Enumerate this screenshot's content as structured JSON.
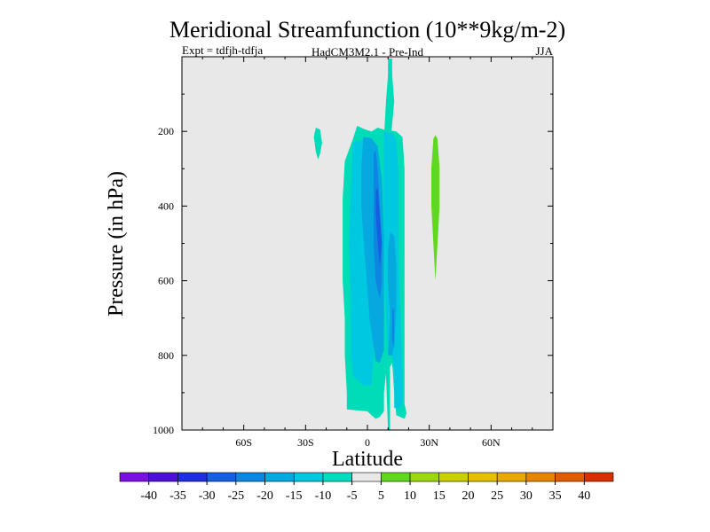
{
  "chart_data": {
    "type": "heatmap",
    "title": "Meridional Streamfunction (10**9kg/m-2)",
    "subtitle_left": "Expt = tdfjh-tdfja",
    "subtitle_center": "HadCM3M2.1 - Pre-Ind",
    "subtitle_right": "JJA",
    "xlabel": "Latitude",
    "ylabel": "Pressure (in hPa)",
    "xlim": [
      -90,
      90
    ],
    "ylim": [
      0,
      1000
    ],
    "x_ticks": [
      {
        "value": -60,
        "label": "60S"
      },
      {
        "value": -30,
        "label": "30S"
      },
      {
        "value": 0,
        "label": "0"
      },
      {
        "value": 30,
        "label": "30N"
      },
      {
        "value": 60,
        "label": "60N"
      }
    ],
    "y_ticks": [
      {
        "value": 200,
        "label": "200"
      },
      {
        "value": 400,
        "label": "400"
      },
      {
        "value": 600,
        "label": "600"
      },
      {
        "value": 800,
        "label": "800"
      },
      {
        "value": 1000,
        "label": "1000"
      }
    ],
    "background_color": "#e8e8e8",
    "colorbar": {
      "colors": [
        "#7a10e0",
        "#4b10d8",
        "#1f2fe0",
        "#1560e0",
        "#0c86e0",
        "#06a8e0",
        "#00c8e0",
        "#00dcc0",
        "#e8e8e8",
        "#60d820",
        "#9cd810",
        "#cad000",
        "#e6c000",
        "#e8a800",
        "#e48400",
        "#e05c00",
        "#d83000"
      ],
      "labels": [
        "-40",
        "-35",
        "-30",
        "-25",
        "-20",
        "-15",
        "-10",
        "-5",
        "5",
        "10",
        "15",
        "20",
        "25",
        "30",
        "35",
        "40"
      ]
    },
    "contours": [
      {
        "name": "upper-cyan-band",
        "level": -5,
        "color": "#00dcb8",
        "points": [
          [
            10,
            5
          ],
          [
            12,
            5
          ],
          [
            12,
            50
          ],
          [
            13,
            120
          ],
          [
            12,
            180
          ],
          [
            11,
            240
          ],
          [
            9,
            330
          ],
          [
            9,
            520
          ],
          [
            11,
            700
          ],
          [
            11,
            1000
          ],
          [
            10,
            1000
          ],
          [
            8,
            700
          ],
          [
            8,
            330
          ],
          [
            8,
            220
          ],
          [
            9,
            120
          ],
          [
            10,
            50
          ]
        ]
      },
      {
        "name": "small-blob-south",
        "level": -5,
        "color": "#00dcb8",
        "points": [
          [
            -25,
            190
          ],
          [
            -23,
            195
          ],
          [
            -22,
            230
          ],
          [
            -23,
            260
          ],
          [
            -24,
            275
          ],
          [
            -25,
            255
          ],
          [
            -26,
            215
          ]
        ]
      },
      {
        "name": "main-envelope",
        "level": -5,
        "color": "#00dcb8",
        "points": [
          [
            -5,
            185
          ],
          [
            -1,
            195
          ],
          [
            2,
            200
          ],
          [
            5,
            190
          ],
          [
            8,
            195
          ],
          [
            14,
            200
          ],
          [
            17,
            215
          ],
          [
            18,
            300
          ],
          [
            18,
            500
          ],
          [
            18,
            700
          ],
          [
            18,
            850
          ],
          [
            18,
            930
          ],
          [
            19,
            955
          ],
          [
            18,
            970
          ],
          [
            14,
            960
          ],
          [
            13,
            900
          ],
          [
            12,
            820
          ],
          [
            9,
            850
          ],
          [
            8,
            900
          ],
          [
            8,
            950
          ],
          [
            6,
            965
          ],
          [
            4,
            970
          ],
          [
            2,
            960
          ],
          [
            0,
            950
          ],
          [
            -10,
            945
          ],
          [
            -10,
            900
          ],
          [
            -11,
            800
          ],
          [
            -11,
            700
          ],
          [
            -12,
            600
          ],
          [
            -12,
            480
          ],
          [
            -12,
            380
          ],
          [
            -11,
            280
          ],
          [
            -9,
            250
          ],
          [
            -7,
            220
          ]
        ]
      },
      {
        "name": "inner-south",
        "level": -10,
        "color": "#00c8e0",
        "points": [
          [
            -7,
            230
          ],
          [
            -4,
            225
          ],
          [
            -1,
            220
          ],
          [
            2,
            235
          ],
          [
            3,
            350
          ],
          [
            3,
            600
          ],
          [
            3,
            800
          ],
          [
            2,
            880
          ],
          [
            -2,
            880
          ],
          [
            -7,
            855
          ],
          [
            -8,
            800
          ],
          [
            -8,
            640
          ],
          [
            -9,
            500
          ],
          [
            -8,
            360
          ]
        ]
      },
      {
        "name": "inner-north",
        "level": -10,
        "color": "#00c8e0",
        "points": [
          [
            8,
            200
          ],
          [
            12,
            205
          ],
          [
            14,
            225
          ],
          [
            15,
            300
          ],
          [
            15,
            500
          ],
          [
            16,
            700
          ],
          [
            17,
            855
          ],
          [
            17,
            930
          ],
          [
            15,
            945
          ],
          [
            13,
            940
          ],
          [
            13,
            850
          ],
          [
            12,
            800
          ],
          [
            10,
            800
          ],
          [
            9,
            700
          ],
          [
            8,
            500
          ],
          [
            8,
            300
          ]
        ]
      },
      {
        "name": "core-center",
        "level": -15,
        "color": "#06a8e0",
        "points": [
          [
            -2,
            215
          ],
          [
            2,
            218
          ],
          [
            5,
            240
          ],
          [
            7,
            330
          ],
          [
            8,
            480
          ],
          [
            8,
            650
          ],
          [
            8,
            785
          ],
          [
            6,
            820
          ],
          [
            4,
            815
          ],
          [
            1,
            700
          ],
          [
            -1,
            550
          ],
          [
            -3,
            400
          ],
          [
            -3,
            300
          ]
        ]
      },
      {
        "name": "core-north",
        "level": -15,
        "color": "#06a8e0",
        "points": [
          [
            11,
            470
          ],
          [
            13,
            480
          ],
          [
            14,
            560
          ],
          [
            14,
            680
          ],
          [
            13,
            765
          ],
          [
            12,
            800
          ],
          [
            10,
            800
          ],
          [
            11,
            700
          ],
          [
            10,
            600
          ],
          [
            10,
            520
          ]
        ]
      },
      {
        "name": "core-inner",
        "level": -20,
        "color": "#0c86e0",
        "points": [
          [
            3,
            260
          ],
          [
            4,
            250
          ],
          [
            5,
            300
          ],
          [
            6,
            400
          ],
          [
            7,
            500
          ],
          [
            7,
            600
          ],
          [
            6,
            650
          ],
          [
            4,
            600
          ],
          [
            3,
            500
          ],
          [
            3,
            400
          ]
        ]
      },
      {
        "name": "core-deep",
        "level": -25,
        "color": "#1560e0",
        "points": [
          [
            4,
            360
          ],
          [
            5,
            350
          ],
          [
            6,
            420
          ],
          [
            7,
            500
          ],
          [
            6,
            560
          ],
          [
            5,
            500
          ],
          [
            4,
            420
          ]
        ]
      },
      {
        "name": "core-north-deep",
        "level": -20,
        "color": "#0c86e0",
        "points": [
          [
            12,
            670
          ],
          [
            13,
            680
          ],
          [
            13,
            740
          ],
          [
            13,
            780
          ],
          [
            12,
            760
          ],
          [
            12,
            700
          ]
        ]
      },
      {
        "name": "north-positive",
        "level": 10,
        "color": "#60d820",
        "points": [
          [
            33,
            210
          ],
          [
            34,
            220
          ],
          [
            35,
            300
          ],
          [
            35,
            400
          ],
          [
            34,
            500
          ],
          [
            33,
            600
          ],
          [
            32,
            500
          ],
          [
            31,
            400
          ],
          [
            31,
            300
          ],
          [
            32,
            220
          ]
        ]
      }
    ]
  }
}
